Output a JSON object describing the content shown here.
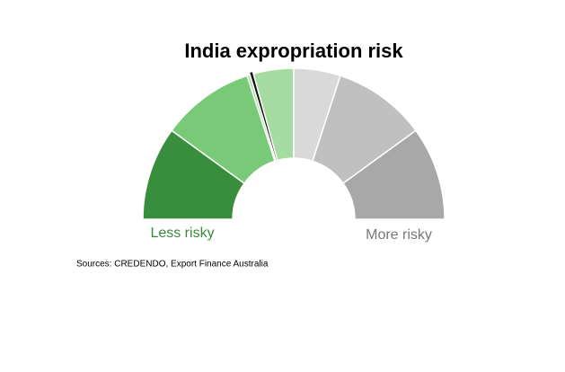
{
  "chart_data": {
    "type": "gauge",
    "title": "India expropriation risk",
    "ylim": [
      0,
      100
    ],
    "values": [
      20,
      20,
      10,
      10,
      20,
      20
    ],
    "colors": [
      "#388e3c",
      "#78c978",
      "#a6dca1",
      "#d9d9d9",
      "#c0c0c0",
      "#a8a8a8"
    ],
    "needle": 41,
    "low_label": "Less risky",
    "high_label": "More risky",
    "source": "Sources: CREDENDO, Export Finance Australia"
  }
}
